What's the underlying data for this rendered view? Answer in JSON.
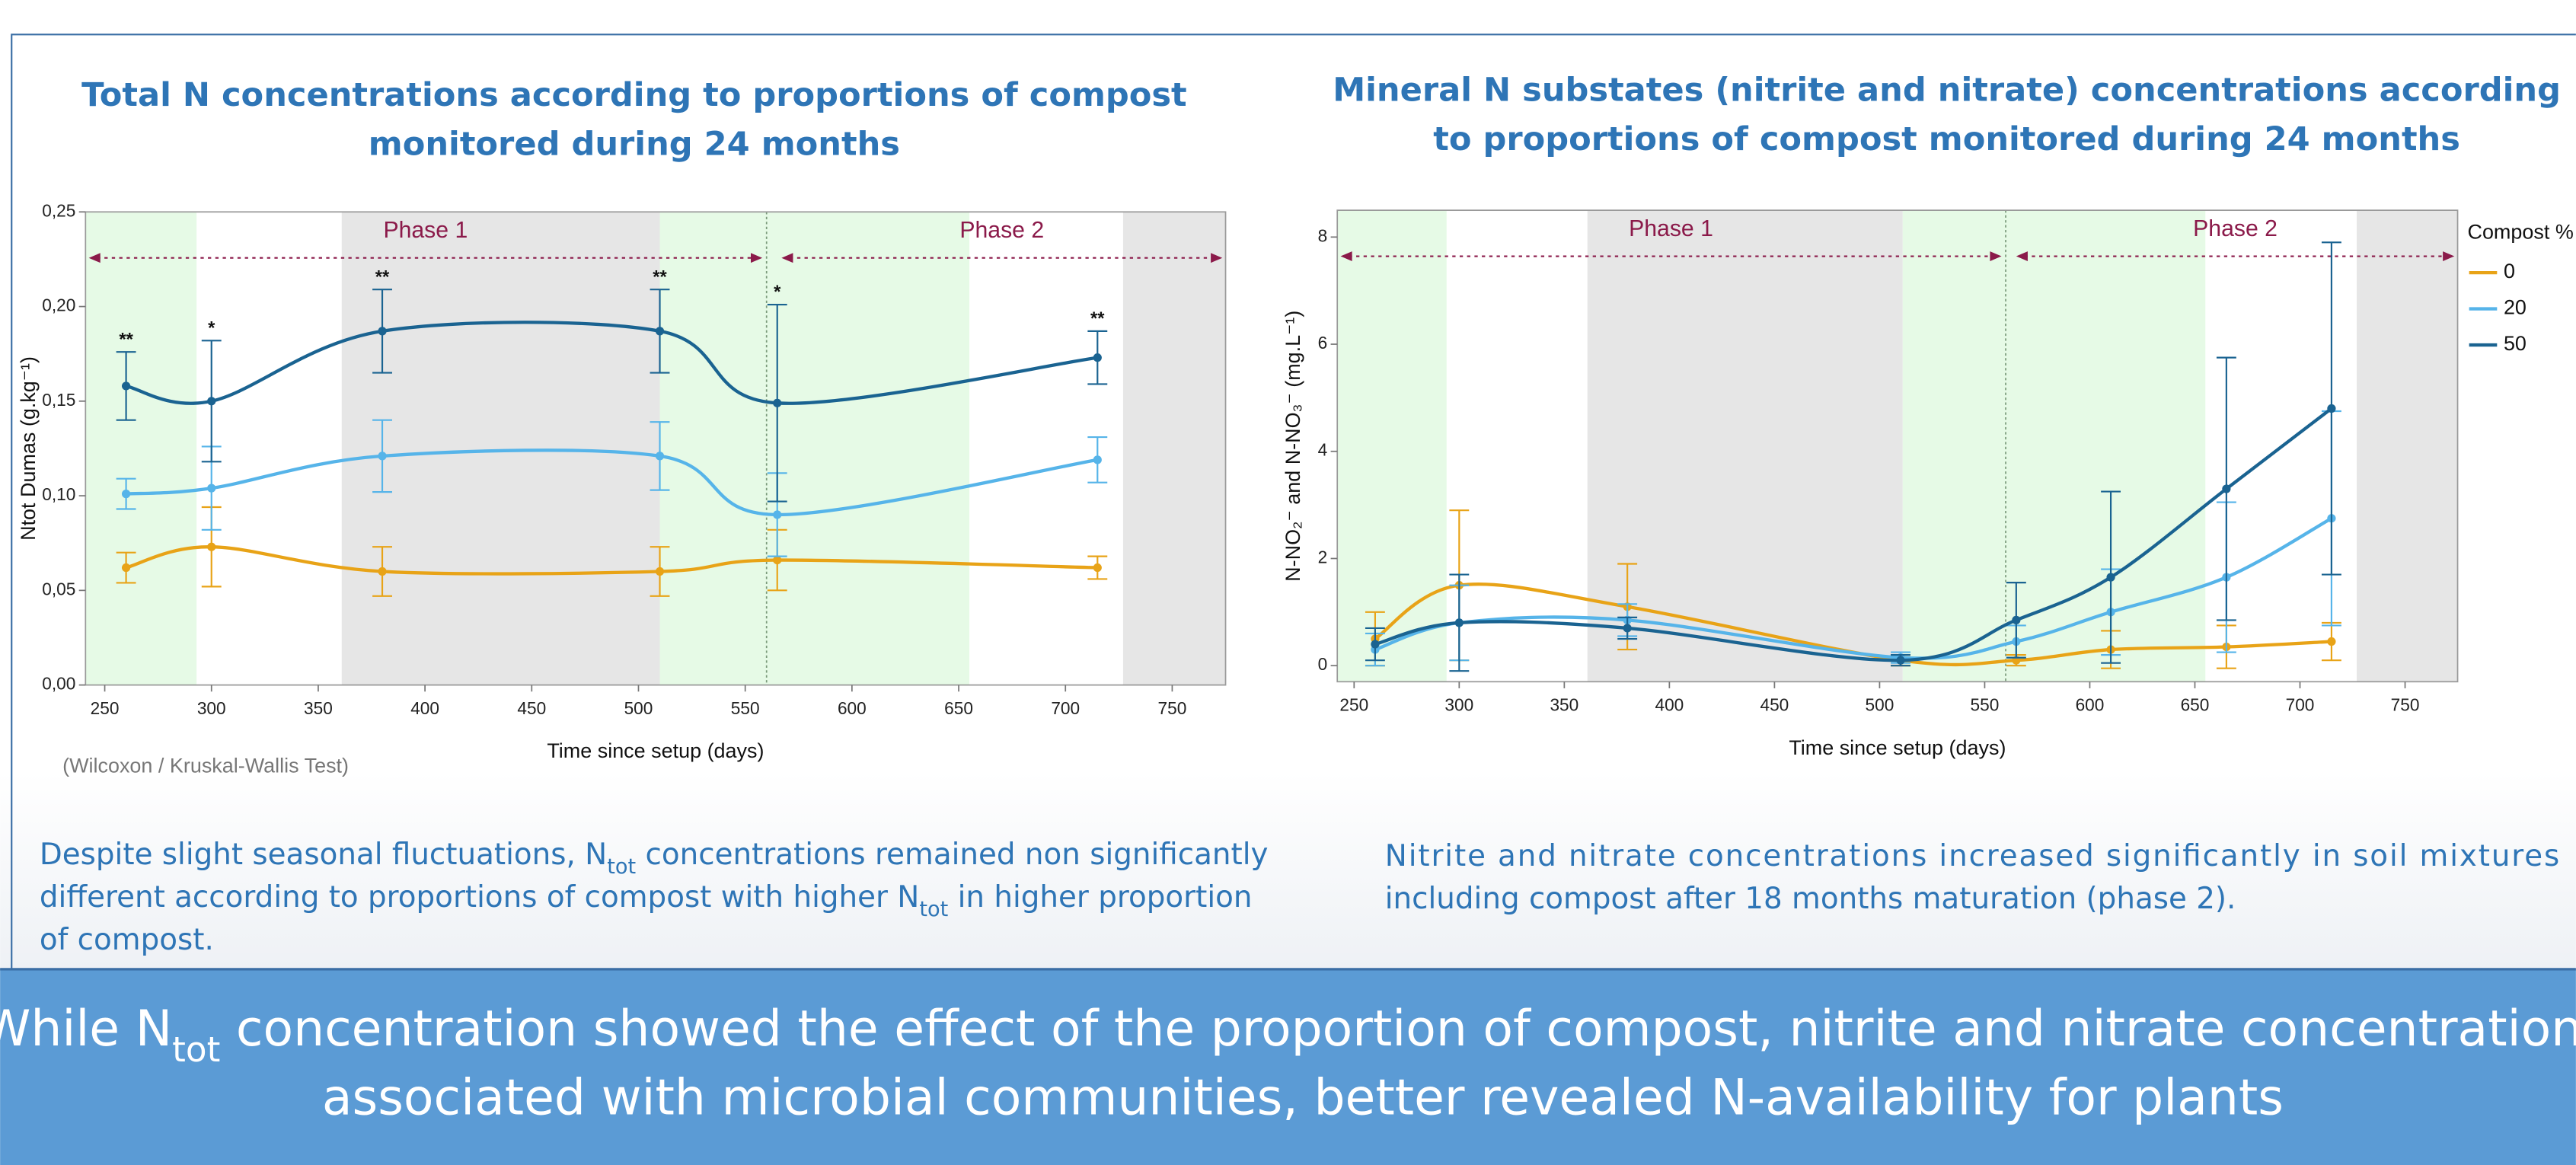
{
  "chart_data": [
    {
      "type": "line",
      "title": [
        "Total N concentrations according to proportions of compost",
        "monitored during 24 months"
      ],
      "x_label": "Time since setup (days)",
      "y_label": "Ntot Dumas (g.kg⁻¹)",
      "note": "(Wilcoxon / Kruskal-Wallis Test)",
      "xlim": [
        241,
        775
      ],
      "ylim": [
        0,
        0.25
      ],
      "xticks": [
        250,
        300,
        350,
        400,
        450,
        500,
        550,
        600,
        650,
        700,
        750
      ],
      "yticks": [
        {
          "value": 0,
          "label": "0,00"
        },
        {
          "value": 0.05,
          "label": "0,05"
        },
        {
          "value": 0.1,
          "label": "0,10"
        },
        {
          "value": 0.15,
          "label": "0,15"
        },
        {
          "value": 0.2,
          "label": "0,20"
        },
        {
          "value": 0.25,
          "label": "0,25"
        }
      ],
      "x": [
        260,
        300,
        380,
        510,
        565,
        715
      ],
      "series": [
        {
          "color": "#e8a317",
          "values": [
            0.062,
            0.073,
            0.06,
            0.06,
            0.066,
            0.062
          ],
          "errors": [
            0.008,
            0.021,
            0.013,
            0.013,
            0.016,
            0.006
          ]
        },
        {
          "color": "#56b4e9",
          "values": [
            0.101,
            0.104,
            0.121,
            0.121,
            0.09,
            0.119
          ],
          "errors": [
            0.008,
            0.022,
            0.019,
            0.018,
            0.022,
            0.012
          ]
        },
        {
          "color": "#1a6391",
          "values": [
            0.158,
            0.15,
            0.187,
            0.187,
            0.149,
            0.173
          ],
          "errors": [
            0.018,
            0.032,
            0.022,
            0.022,
            0.052,
            0.014
          ]
        }
      ],
      "significance": [
        "**",
        "*",
        "**",
        "**",
        "*",
        "**"
      ],
      "shaded_regions": [
        {
          "range": [
            241,
            293
          ],
          "color": "#e6fae6"
        },
        {
          "range": [
            361,
            510
          ],
          "color": "#e6e6e6"
        },
        {
          "range": [
            510,
            655
          ],
          "color": "#e6fae6"
        },
        {
          "range": [
            727,
            775
          ],
          "color": "#e6e6e6"
        }
      ],
      "divider": 560,
      "phases": [
        {
          "label": "Phase 1",
          "range": [
            241,
            558
          ]
        },
        {
          "label": "Phase 2",
          "range": [
            567,
            775
          ]
        }
      ]
    },
    {
      "type": "line",
      "title": [
        "Mineral N substates (nitrite and nitrate) concentrations according",
        "to proportions of compost monitored during 24 months"
      ],
      "x_label": "Time since setup (days)",
      "y_label": "N-NO₂⁻ and N-NO₃⁻ (mg.L⁻¹)",
      "legend_title": "Compost %",
      "xlim": [
        242,
        775
      ],
      "ylim": [
        -0.3,
        8.5
      ],
      "xticks": [
        250,
        300,
        350,
        400,
        450,
        500,
        550,
        600,
        650,
        700,
        750
      ],
      "yticks": [
        0,
        2,
        4,
        6,
        8
      ],
      "x": [
        260,
        300,
        380,
        510,
        565,
        610,
        665,
        715
      ],
      "series": [
        {
          "name": "0",
          "color": "#e8a317",
          "values": [
            0.5,
            1.5,
            1.1,
            0.1,
            0.1,
            0.3,
            0.35,
            0.45
          ],
          "errors": [
            0.5,
            1.4,
            0.8,
            0.1,
            0.1,
            0.35,
            0.4,
            0.35
          ]
        },
        {
          "name": "20",
          "color": "#56b4e9",
          "values": [
            0.3,
            0.8,
            0.85,
            0.15,
            0.45,
            1.0,
            1.65,
            2.75
          ],
          "errors": [
            0.3,
            0.7,
            0.3,
            0.1,
            0.3,
            0.8,
            1.4,
            2.0
          ]
        },
        {
          "name": "50",
          "color": "#1a6391",
          "values": [
            0.4,
            0.8,
            0.7,
            0.1,
            0.85,
            1.65,
            3.3,
            4.8
          ],
          "errors": [
            0.3,
            0.9,
            0.2,
            0.1,
            0.7,
            1.6,
            2.45,
            3.1
          ]
        }
      ],
      "shaded_regions": [
        {
          "range": [
            242,
            294
          ],
          "color": "#e6fae6"
        },
        {
          "range": [
            361,
            511
          ],
          "color": "#e6e6e6"
        },
        {
          "range": [
            511,
            655
          ],
          "color": "#e6fae6"
        },
        {
          "range": [
            727,
            775
          ],
          "color": "#e6e6e6"
        }
      ],
      "divider": 560,
      "phases": [
        {
          "label": "Phase 1",
          "range": [
            242,
            558
          ]
        },
        {
          "label": "Phase 2",
          "range": [
            565,
            775
          ]
        }
      ]
    }
  ],
  "caption_left": [
    [
      {
        "text": "Despite slight seasonal fluctuations, N"
      },
      {
        "text": "tot",
        "sub": true
      },
      {
        "text": " concentrations remained non significantly"
      }
    ],
    [
      {
        "text": "different according to proportions of compost with higher N"
      },
      {
        "text": "tot",
        "sub": true
      },
      {
        "text": " in higher proportion"
      }
    ],
    [
      {
        "text": "of compost."
      }
    ]
  ],
  "caption_right": [
    [
      {
        "text": "Nitrite and nitrate concentrations increased significantly in soil mixtures"
      }
    ],
    [
      {
        "text": "including compost after 18 months maturation (phase 2)."
      }
    ]
  ],
  "banner": [
    [
      {
        "text": "While N"
      },
      {
        "text": "tot",
        "sub": true
      },
      {
        "text": " concentration showed the effect of the proportion of compost, nitrite and nitrate concentrations,"
      }
    ],
    [
      {
        "text": "associated with  microbial communities, better revealed N-availability for plants"
      }
    ]
  ]
}
